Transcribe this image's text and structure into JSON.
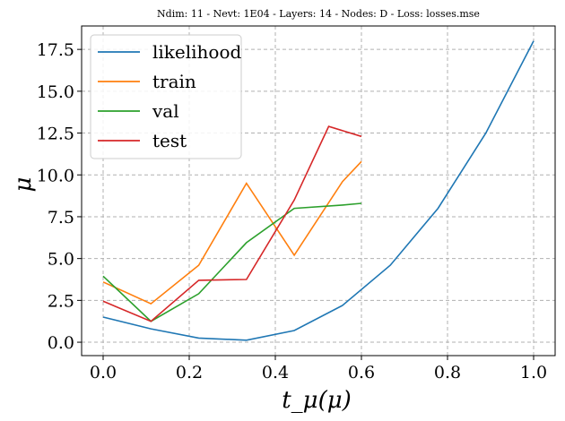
{
  "chart_data": {
    "type": "line",
    "title": "Ndim: 11 - Nevt: 1E04 - Layers: 14 - Nodes: D - Loss: losses.mse",
    "xlabel": "t_μ(μ)",
    "ylabel": "μ",
    "xlim": [
      -0.05,
      1.05
    ],
    "ylim": [
      -0.8,
      18.9
    ],
    "xticks": [
      0.0,
      0.2,
      0.4,
      0.6,
      0.8,
      1.0
    ],
    "xtick_labels": [
      "0.0",
      "0.2",
      "0.4",
      "0.6",
      "0.8",
      "1.0"
    ],
    "yticks": [
      0.0,
      2.5,
      5.0,
      7.5,
      10.0,
      12.5,
      15.0,
      17.5
    ],
    "ytick_labels": [
      "0.0",
      "2.5",
      "5.0",
      "7.5",
      "10.0",
      "12.5",
      "15.0",
      "17.5"
    ],
    "grid": true,
    "legend_position": "top-left",
    "series": [
      {
        "name": "likelihood",
        "color": "#1f77b4",
        "x": [
          0.0,
          0.111,
          0.222,
          0.333,
          0.444,
          0.556,
          0.667,
          0.778,
          0.889,
          1.0
        ],
        "y": [
          1.5,
          0.8,
          0.25,
          0.12,
          0.7,
          2.2,
          4.6,
          8.0,
          12.5,
          18.0
        ]
      },
      {
        "name": "train",
        "color": "#ff7f0e",
        "x": [
          0.0,
          0.111,
          0.222,
          0.333,
          0.444,
          0.556,
          0.6
        ],
        "y": [
          3.6,
          2.3,
          4.6,
          9.5,
          5.2,
          9.6,
          10.8
        ]
      },
      {
        "name": "val",
        "color": "#2ca02c",
        "x": [
          0.0,
          0.111,
          0.222,
          0.333,
          0.444,
          0.556,
          0.6
        ],
        "y": [
          3.95,
          1.25,
          2.9,
          5.95,
          8.0,
          8.2,
          8.3
        ]
      },
      {
        "name": "test",
        "color": "#d62728",
        "x": [
          0.0,
          0.111,
          0.222,
          0.333,
          0.444,
          0.524,
          0.6
        ],
        "y": [
          2.45,
          1.25,
          3.7,
          3.75,
          8.5,
          12.9,
          12.3
        ]
      }
    ]
  }
}
